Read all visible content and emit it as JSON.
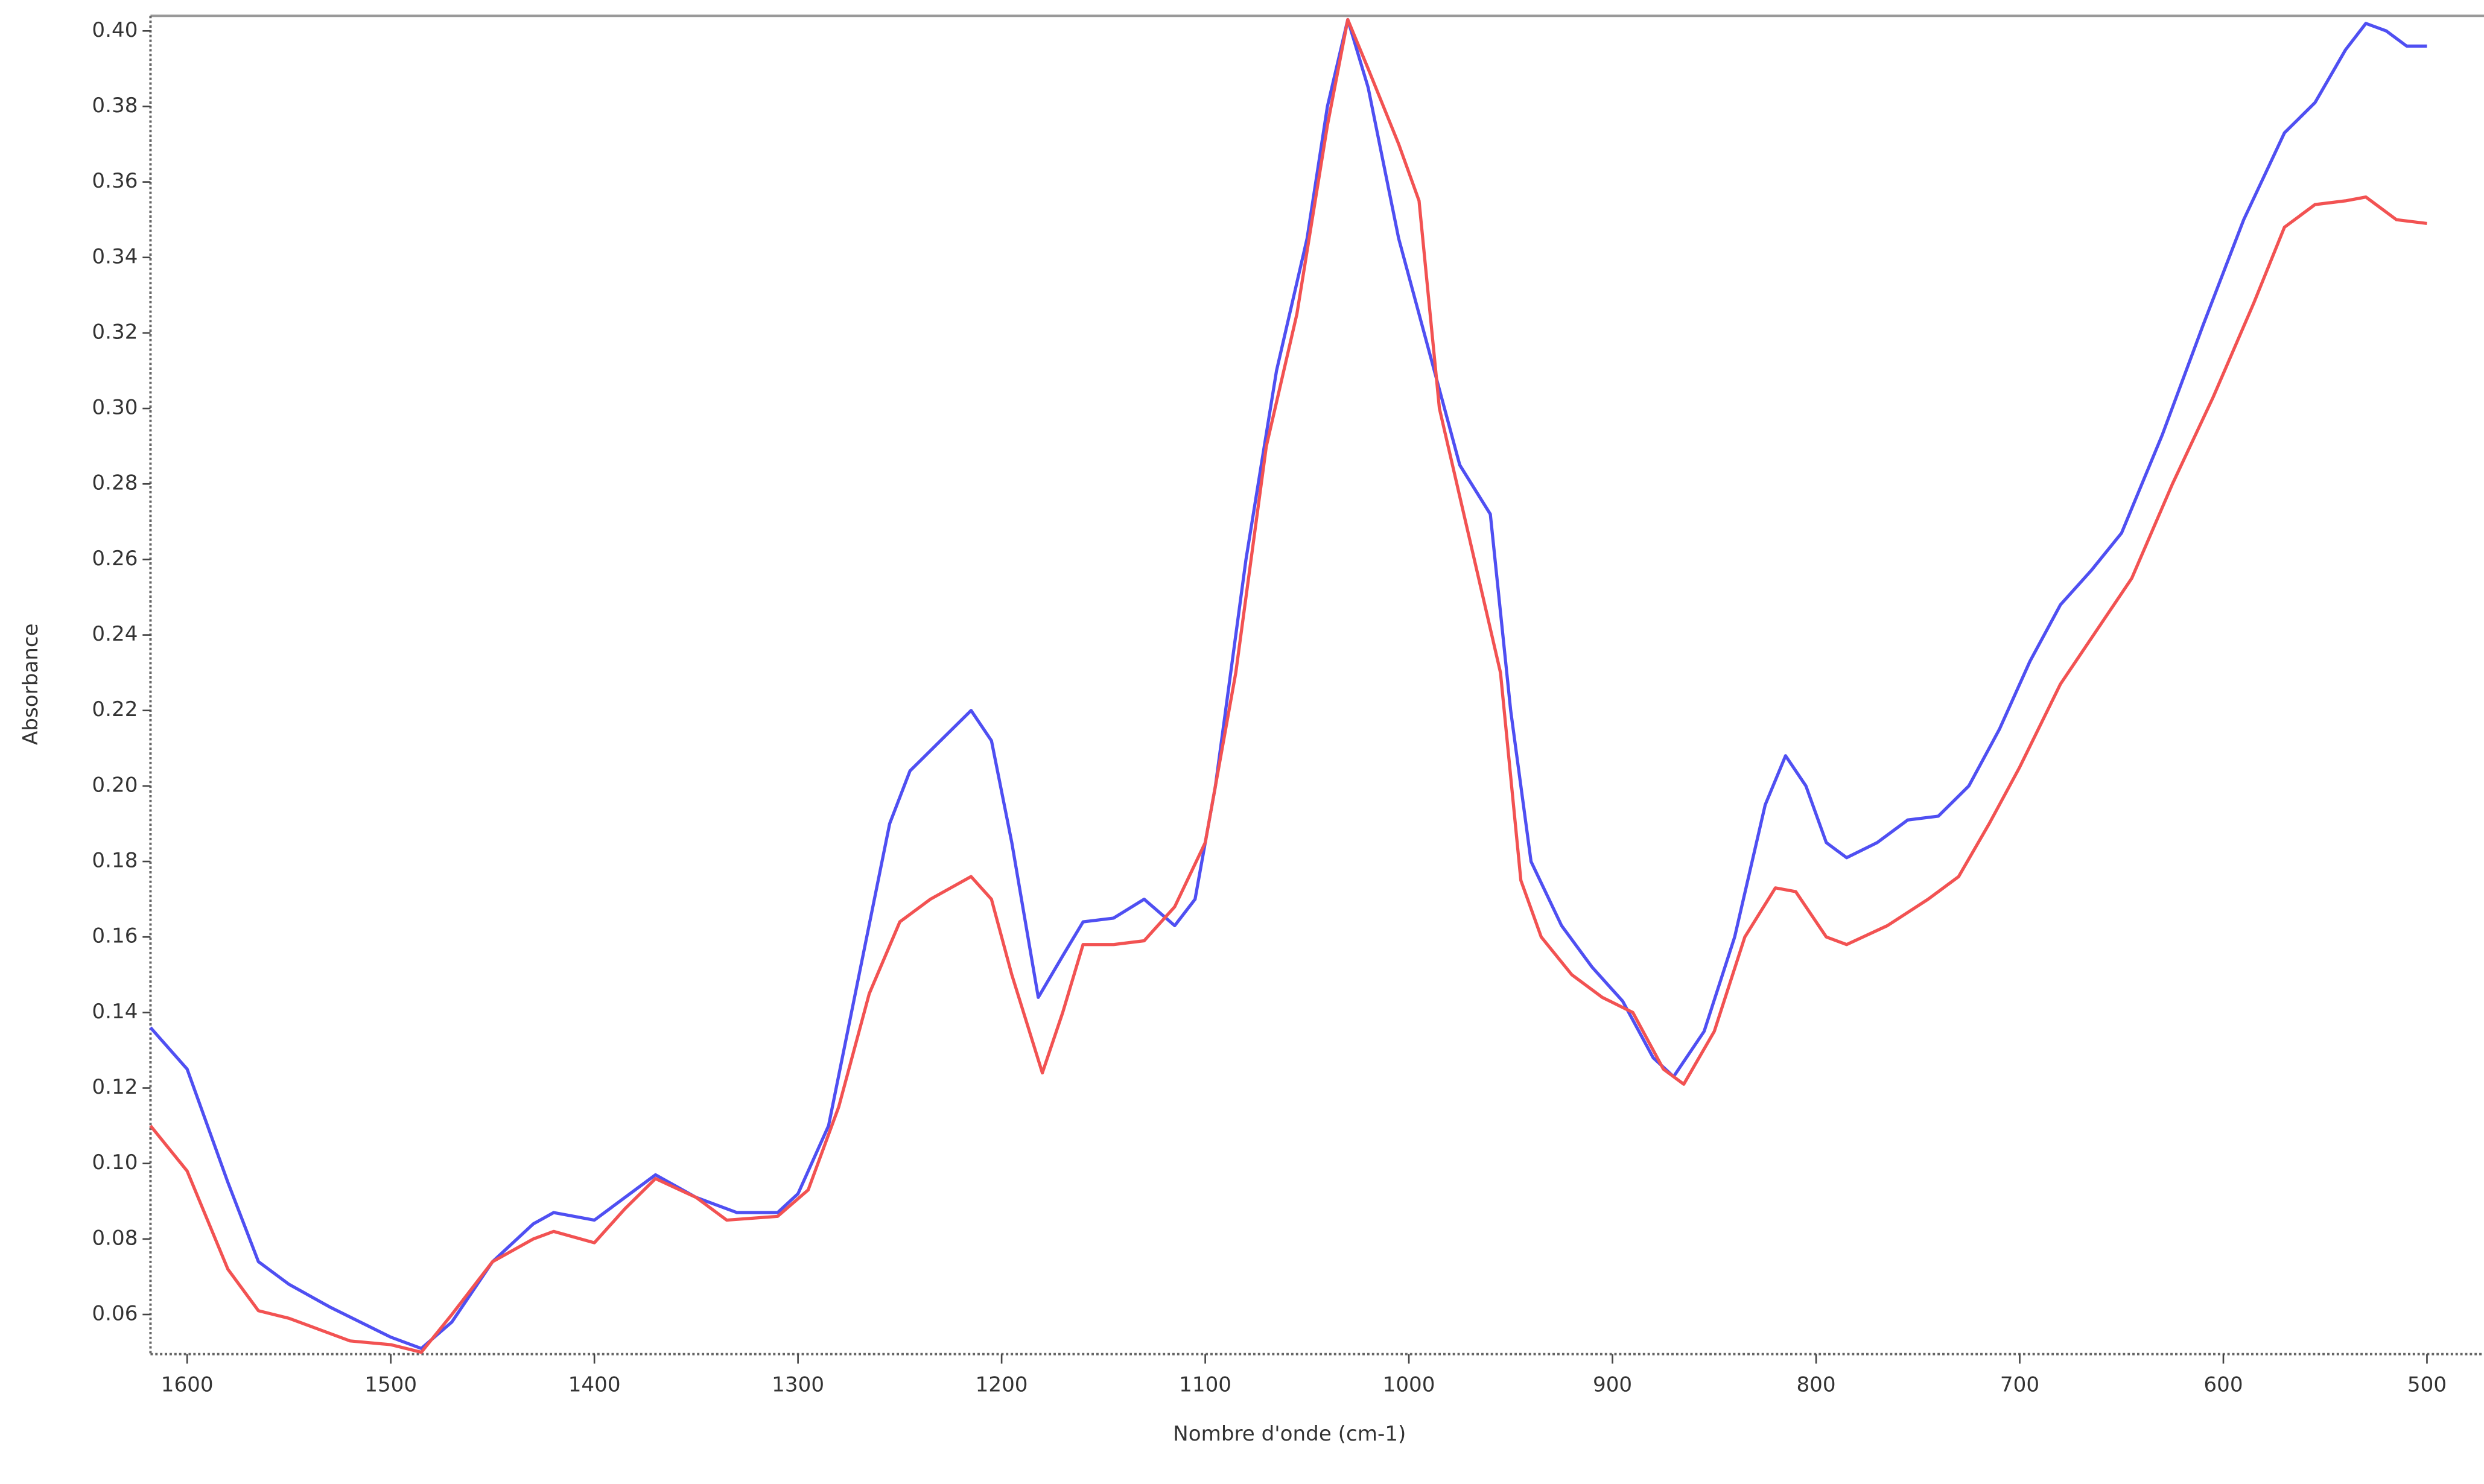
{
  "chart_data": {
    "type": "line",
    "x_label": "Nombre d'onde (cm-1)",
    "y_label": "Absorbance",
    "xlim": [
      1618,
      500
    ],
    "xticks": [
      1600,
      1500,
      1400,
      1300,
      1200,
      1100,
      1000,
      900,
      800,
      700,
      600,
      500
    ],
    "ylim": [
      0.0495,
      0.404
    ],
    "yticks": [
      0.06,
      0.08,
      {
        "value": 0.1,
        "label": "0.10"
      },
      0.12,
      0.14,
      0.16,
      0.18,
      {
        "value": 0.2,
        "label": "0.20"
      },
      0.22,
      0.24,
      0.26,
      0.28,
      {
        "value": 0.3,
        "label": "0.30"
      },
      0.32,
      0.34,
      0.36,
      0.38,
      {
        "value": 0.4,
        "label": "0.40"
      }
    ],
    "series": [
      {
        "color": "#4f4ff2",
        "x": [
          1618,
          1600,
          1580,
          1565,
          1550,
          1530,
          1500,
          1485,
          1470,
          1450,
          1430,
          1420,
          1400,
          1385,
          1370,
          1350,
          1330,
          1310,
          1300,
          1285,
          1270,
          1255,
          1245,
          1230,
          1215,
          1205,
          1195,
          1182,
          1170,
          1160,
          1145,
          1130,
          1115,
          1105,
          1095,
          1080,
          1065,
          1050,
          1040,
          1030,
          1020,
          1005,
          990,
          975,
          960,
          950,
          940,
          925,
          910,
          895,
          880,
          870,
          855,
          840,
          825,
          815,
          805,
          795,
          785,
          770,
          755,
          740,
          725,
          710,
          695,
          680,
          665,
          650,
          630,
          610,
          590,
          570,
          555,
          540,
          530,
          520,
          510,
          500
        ],
        "values": [
          0.136,
          0.125,
          0.095,
          0.074,
          0.068,
          0.062,
          0.054,
          0.051,
          0.058,
          0.074,
          0.084,
          0.087,
          0.085,
          0.091,
          0.097,
          0.091,
          0.087,
          0.087,
          0.092,
          0.11,
          0.15,
          0.19,
          0.204,
          0.212,
          0.22,
          0.212,
          0.185,
          0.144,
          0.155,
          0.164,
          0.165,
          0.17,
          0.163,
          0.17,
          0.2,
          0.26,
          0.31,
          0.345,
          0.38,
          0.403,
          0.385,
          0.345,
          0.315,
          0.285,
          0.272,
          0.22,
          0.18,
          0.163,
          0.152,
          0.143,
          0.128,
          0.123,
          0.135,
          0.16,
          0.195,
          0.208,
          0.2,
          0.185,
          0.181,
          0.185,
          0.191,
          0.192,
          0.2,
          0.215,
          0.233,
          0.248,
          0.257,
          0.267,
          0.293,
          0.322,
          0.35,
          0.373,
          0.381,
          0.395,
          0.402,
          0.4,
          0.396,
          0.396
        ]
      },
      {
        "color": "#f25252",
        "x": [
          1618,
          1600,
          1580,
          1565,
          1550,
          1535,
          1520,
          1500,
          1485,
          1470,
          1450,
          1430,
          1420,
          1400,
          1385,
          1370,
          1350,
          1335,
          1310,
          1295,
          1280,
          1265,
          1250,
          1235,
          1215,
          1205,
          1195,
          1180,
          1170,
          1160,
          1145,
          1130,
          1115,
          1100,
          1085,
          1070,
          1055,
          1040,
          1030,
          1020,
          1005,
          995,
          985,
          970,
          955,
          945,
          935,
          920,
          905,
          890,
          875,
          865,
          850,
          835,
          820,
          810,
          795,
          785,
          765,
          745,
          730,
          715,
          700,
          680,
          660,
          645,
          625,
          605,
          585,
          570,
          555,
          540,
          530,
          515,
          500
        ],
        "values": [
          0.11,
          0.098,
          0.072,
          0.061,
          0.059,
          0.056,
          0.053,
          0.052,
          0.05,
          0.06,
          0.074,
          0.08,
          0.082,
          0.079,
          0.088,
          0.096,
          0.091,
          0.085,
          0.086,
          0.093,
          0.115,
          0.145,
          0.164,
          0.17,
          0.176,
          0.17,
          0.15,
          0.124,
          0.14,
          0.158,
          0.158,
          0.159,
          0.168,
          0.185,
          0.23,
          0.29,
          0.325,
          0.375,
          0.403,
          0.39,
          0.37,
          0.355,
          0.3,
          0.265,
          0.23,
          0.175,
          0.16,
          0.15,
          0.144,
          0.14,
          0.125,
          0.121,
          0.135,
          0.16,
          0.173,
          0.172,
          0.16,
          0.158,
          0.163,
          0.17,
          0.176,
          0.19,
          0.205,
          0.227,
          0.243,
          0.255,
          0.28,
          0.303,
          0.328,
          0.348,
          0.354,
          0.355,
          0.356,
          0.35,
          0.349
        ]
      }
    ]
  }
}
